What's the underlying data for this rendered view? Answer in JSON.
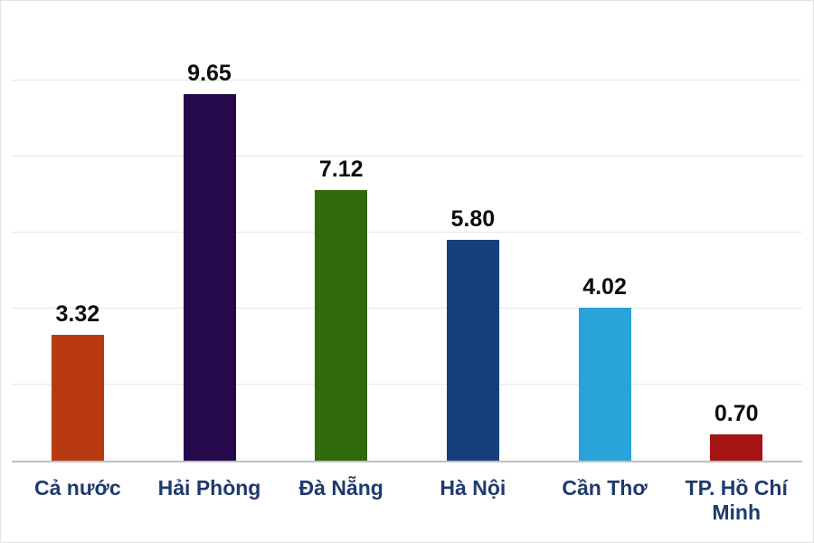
{
  "chart_data": {
    "type": "bar",
    "title": "",
    "xlabel": "",
    "ylabel": "",
    "categories": [
      "Cả nước",
      "Hải Phòng",
      "Đà Nẵng",
      "Hà Nội",
      "Cần Thơ",
      "TP. Hồ Chí Minh"
    ],
    "values": [
      3.32,
      9.65,
      7.12,
      5.8,
      4.02,
      0.7
    ],
    "value_labels": [
      "3.32",
      "9.65",
      "7.12",
      "5.80",
      "4.02",
      "0.70"
    ],
    "colors": [
      "#b93a10",
      "#26094c",
      "#2f6a0d",
      "#15407c",
      "#29a3da",
      "#a51313"
    ],
    "ylim": [
      0,
      10
    ],
    "grid": "horizontal-light",
    "gridline_step": 2,
    "legend": "none",
    "category_label_color": "#1e3a6e",
    "value_label_color": "#0d0d0d"
  }
}
